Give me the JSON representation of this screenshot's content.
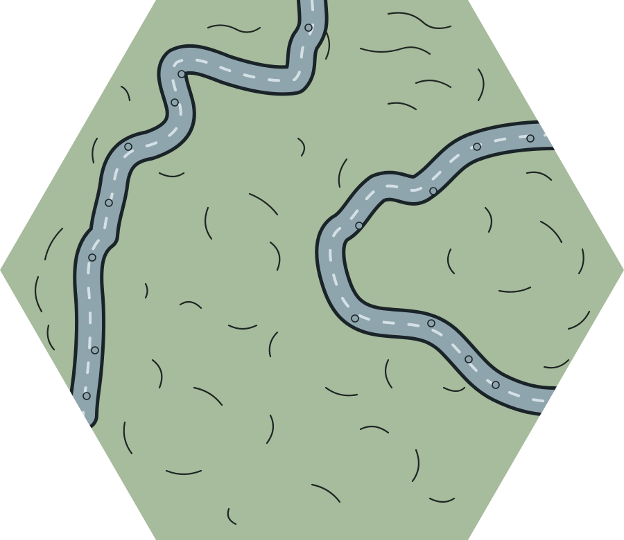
{
  "tile": {
    "terrain": "grassland",
    "features": [
      "river-northwest",
      "river-east-bend"
    ],
    "colors": {
      "grass": "#a7bb9d",
      "water": "#8fa5ad",
      "water_highlight": "#d4e0e6",
      "bank_ink": "#1a2428",
      "contour_ink": "#1e2622"
    }
  }
}
